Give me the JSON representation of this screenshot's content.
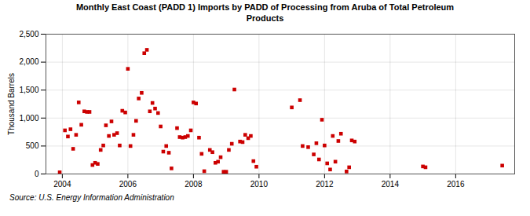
{
  "chart_data": {
    "type": "scatter",
    "title": "Monthly East Coast (PADD 1) Imports by PADD of Processing from Aruba of Total Petroleum\nProducts",
    "ylabel": "Thousand Barrels",
    "source": "Source: U.S. Energy Information Administration",
    "color": "#cc0000",
    "marker": "square",
    "grid": true,
    "xlim": [
      2003.5,
      2017.8
    ],
    "xticks": [
      2004,
      2006,
      2008,
      2010,
      2012,
      2014,
      2016
    ],
    "ylim": [
      0,
      2500
    ],
    "yticks": [
      0,
      500,
      {
        "value": 1000,
        "label": "1,000"
      },
      {
        "value": 1500,
        "label": "1,500"
      },
      {
        "value": 2000,
        "label": "2,000"
      },
      {
        "value": 2500,
        "label": "2,500"
      }
    ],
    "x": [
      2003.92,
      2004.08,
      2004.17,
      2004.25,
      2004.33,
      2004.42,
      2004.5,
      2004.58,
      2004.67,
      2004.75,
      2004.83,
      2004.92,
      2005.0,
      2005.08,
      2005.17,
      2005.25,
      2005.33,
      2005.42,
      2005.5,
      2005.58,
      2005.67,
      2005.75,
      2005.83,
      2005.92,
      2006.0,
      2006.08,
      2006.17,
      2006.25,
      2006.33,
      2006.42,
      2006.5,
      2006.58,
      2006.67,
      2006.75,
      2006.83,
      2006.92,
      2007.0,
      2007.08,
      2007.17,
      2007.25,
      2007.33,
      2007.5,
      2007.58,
      2007.67,
      2007.75,
      2007.83,
      2007.92,
      2008.0,
      2008.08,
      2008.17,
      2008.25,
      2008.33,
      2008.5,
      2008.58,
      2008.67,
      2008.75,
      2008.83,
      2008.92,
      2009.0,
      2009.08,
      2009.17,
      2009.25,
      2009.42,
      2009.5,
      2009.58,
      2009.67,
      2009.75,
      2009.83,
      2009.92,
      2011.0,
      2011.25,
      2011.33,
      2011.5,
      2011.67,
      2011.75,
      2011.83,
      2011.92,
      2012.0,
      2012.08,
      2012.17,
      2012.25,
      2012.33,
      2012.42,
      2012.5,
      2012.67,
      2012.75,
      2012.83,
      2012.92,
      2015.0,
      2015.08,
      2017.42
    ],
    "values": [
      30,
      780,
      670,
      800,
      450,
      700,
      1280,
      880,
      1120,
      1110,
      1110,
      160,
      200,
      180,
      430,
      510,
      870,
      680,
      940,
      700,
      730,
      510,
      1130,
      1100,
      1880,
      500,
      700,
      950,
      1350,
      1450,
      2160,
      2220,
      1120,
      1270,
      1170,
      1090,
      850,
      400,
      500,
      380,
      100,
      820,
      660,
      650,
      660,
      680,
      780,
      1280,
      1260,
      650,
      360,
      50,
      430,
      390,
      200,
      220,
      300,
      40,
      40,
      430,
      540,
      1510,
      580,
      570,
      700,
      640,
      680,
      230,
      130,
      1190,
      1320,
      500,
      480,
      350,
      550,
      260,
      970,
      510,
      190,
      80,
      680,
      220,
      590,
      720,
      45,
      120,
      600,
      580,
      135,
      120,
      150
    ]
  }
}
